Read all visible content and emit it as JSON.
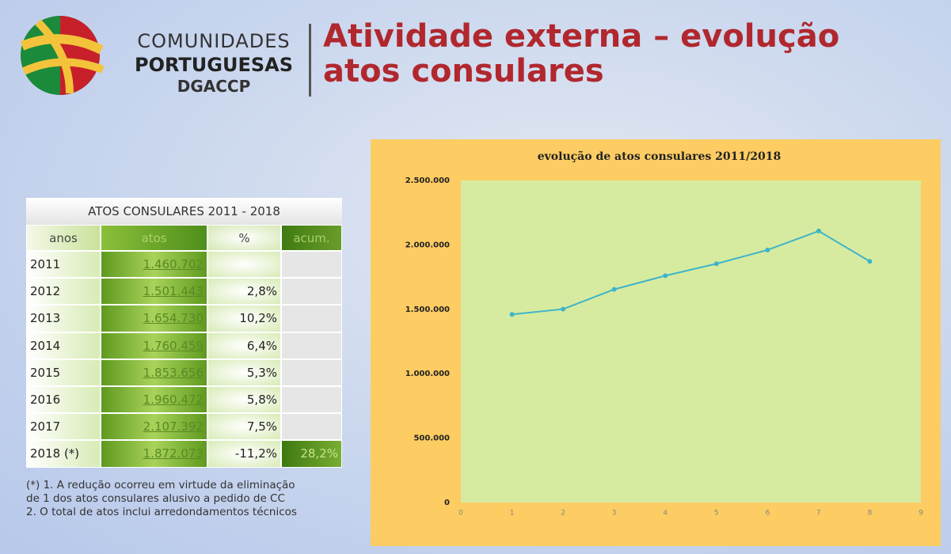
{
  "header": {
    "brand_line1": "COMUNIDADES",
    "brand_line2": "PORTUGUESAS",
    "brand_line3": "DGACCP",
    "title": "Atividade externa – evolução atos consulares"
  },
  "table": {
    "title": "ATOS CONSULARES 2011 - 2018",
    "columns": [
      "anos",
      "atos",
      "%",
      "acum."
    ],
    "rows": [
      [
        "2011",
        "1.460.702",
        null,
        null
      ],
      [
        "2012",
        "1.501.443",
        "2,8%",
        null
      ],
      [
        "2013",
        "1.654.730",
        "10,2%",
        null
      ],
      [
        "2014",
        "1.760.459",
        "6,4%",
        null
      ],
      [
        "2015",
        "1.853.656",
        "5,3%",
        null
      ],
      [
        "2016",
        "1.960.472",
        "5,8%",
        null
      ],
      [
        "2017",
        "2.107.392",
        "7,5%",
        null
      ],
      [
        "2018 (*)",
        "1.872.073",
        "-11,2%",
        "28,2%"
      ]
    ]
  },
  "note": [
    "(*) 1. A redução ocorreu em virtude da eliminação",
    "de 1 dos atos consulares alusivo a pedido de CC",
    "2. O total de atos inclui arredondamentos técnicos"
  ],
  "chart_data": {
    "type": "line",
    "title": "evolução de atos consulares 2011/2018",
    "x": [
      1,
      2,
      3,
      4,
      5,
      6,
      7,
      8
    ],
    "values": [
      1460702,
      1501443,
      1654730,
      1760459,
      1853656,
      1960472,
      2107392,
      1872073
    ],
    "color": "#3fb4c9",
    "xlim": [
      0,
      9
    ],
    "xticks": [
      0,
      1,
      2,
      3,
      4,
      5,
      6,
      7,
      8,
      9
    ],
    "ylim": [
      0,
      2500000
    ],
    "yticks": [
      0,
      {
        "value": 500000,
        "label": "500.000"
      },
      {
        "value": 1000000,
        "label": "1.000.000"
      },
      {
        "value": 1500000,
        "label": "1.500.000"
      },
      {
        "value": 2000000,
        "label": "2.000.000"
      },
      {
        "value": 2500000,
        "label": "2.500.000"
      }
    ]
  }
}
